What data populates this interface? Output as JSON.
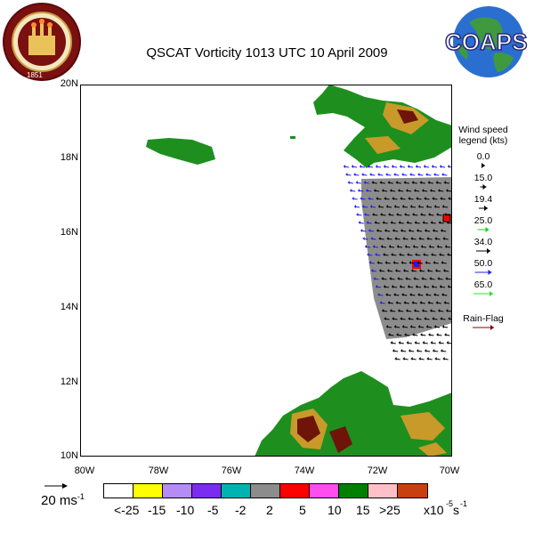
{
  "title": "QSCAT Vorticity 1013 UTC 10 April 2009",
  "logos": {
    "left": {
      "name": "Florida State University seal",
      "text": "FLORIDA STATE UNIVERSITY",
      "year": "1851"
    },
    "right": {
      "name": "COAPS globe logo",
      "text": "COAPS"
    }
  },
  "map": {
    "lat_labels": [
      "20N",
      "18N",
      "16N",
      "14N",
      "12N",
      "10N"
    ],
    "lon_labels": [
      "80W",
      "78W",
      "76W",
      "74W",
      "72W",
      "70W"
    ],
    "land_color": "#1e8f1e",
    "highland_color": "#c89a2a",
    "peak_color": "#6e1408",
    "swath_color": "#8c8c8c"
  },
  "wind_legend": {
    "title": "Wind speed legend (kts)",
    "items": [
      {
        "label": "0.0",
        "color": "#000000"
      },
      {
        "label": "15.0",
        "color": "#000000"
      },
      {
        "label": "19.4",
        "color": "#000000"
      },
      {
        "label": "25.0",
        "color": "#1fd11f"
      },
      {
        "label": "34.0",
        "color": "#000000"
      },
      {
        "label": "50.0",
        "color": "#1f1fe6"
      },
      {
        "label": "65.0",
        "color": "#33dd33"
      }
    ],
    "rain_flag": {
      "label": "Rain-Flag",
      "color": "#8b0000"
    }
  },
  "scale": {
    "label": "20 ms",
    "unit_sup": "-1"
  },
  "colorbar": {
    "colors": [
      "#ffffff",
      "#ffff00",
      "#b58cf5",
      "#7a2cf0",
      "#00b3b3",
      "#8c8c8c",
      "#ff0000",
      "#ff4df0",
      "#008000",
      "#ffc0c8",
      "#c84010"
    ],
    "labels": [
      "<-25",
      "-15",
      "-10",
      "-5",
      "-2",
      "2",
      "5",
      "10",
      "15",
      ">25",
      "x10",
      "-5",
      "s",
      "-1"
    ]
  }
}
